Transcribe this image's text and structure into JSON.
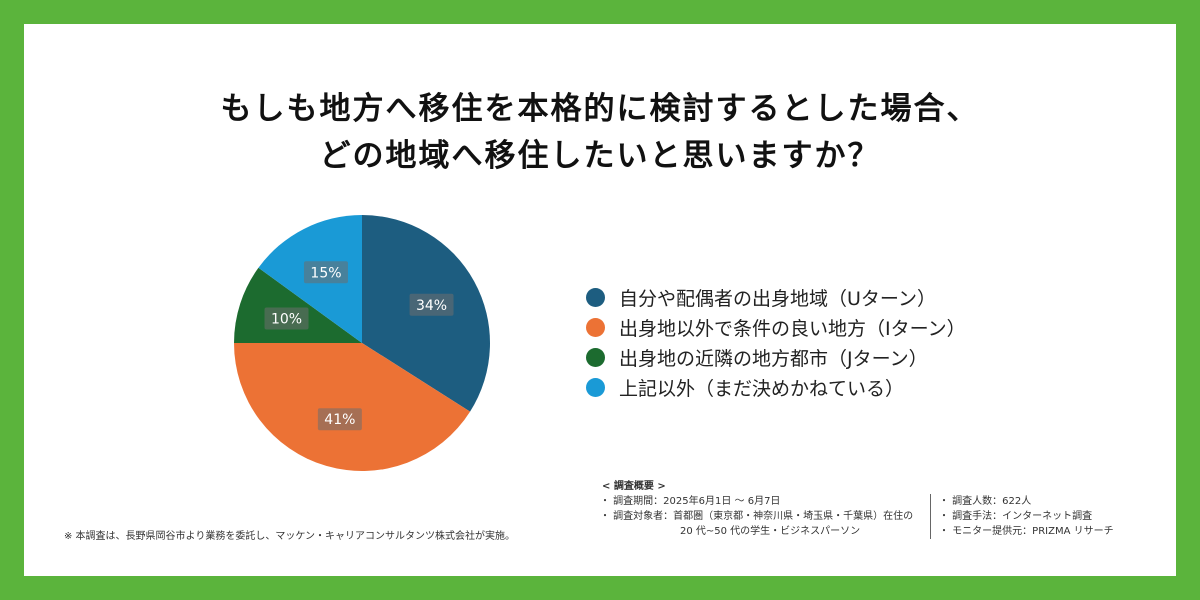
{
  "title": {
    "line1": "もしも地方へ移住を本格的に検討するとした場合、",
    "line2": "どの地域へ移住したいと思いますか？"
  },
  "chart_data": {
    "type": "pie",
    "categories": [
      "自分や配偶者の出身地域（Uターン）",
      "出身地以外で条件の良い地方（Iターン）",
      "出身地の近隣の地方都市（Jターン）",
      "上記以外（まだ決めかねている）"
    ],
    "values": [
      34,
      41,
      10,
      15
    ],
    "value_labels": [
      "34%",
      "41%",
      "10%",
      "15%"
    ],
    "colors": [
      "#1d5d80",
      "#ec7235",
      "#1c6b2f",
      "#1a9ad6"
    ],
    "legend_position": "right"
  },
  "footnote": "※ 本調査は、長野県岡谷市より業務を委託し、マッケン・キャリアコンサルタンツ株式会社が実施。",
  "overview": {
    "heading": "< 調査概要 >",
    "period": "・ 調査期間：2025年6月1日 ～ 6月7日",
    "target": "・ 調査対象者：首都圏（東京都・神奈川県・埼玉県・千葉県）在住の",
    "target2": "20 代~50 代の学生・ビジネスパーソン",
    "count": "・ 調査人数：622人",
    "method": "・ 調査手法：インターネット調査",
    "provider": "・ モニター提供元：PRIZMA リサーチ"
  }
}
